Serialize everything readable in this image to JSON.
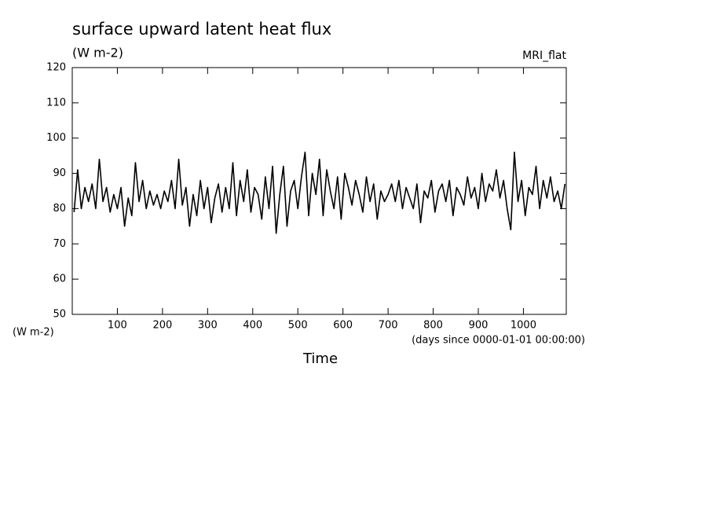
{
  "chart_data": {
    "type": "line",
    "title": "surface upward latent heat flux",
    "subtitle": "(W m-2)",
    "dataset_label": "MRI_flat",
    "y_axis_unit": "(W m-2)",
    "x_axis_unit": "(days since 0000-01-01 00:00:00)",
    "x_label": "Time",
    "xlim": [
      0,
      1095
    ],
    "xticks": [
      100,
      200,
      300,
      400,
      500,
      600,
      700,
      800,
      900,
      1000
    ],
    "ylim": [
      50,
      120
    ],
    "yticks": [
      50,
      60,
      70,
      80,
      90,
      100,
      110,
      120
    ],
    "series": [
      {
        "color": "#000000",
        "x": [
          4,
          12,
          20,
          28,
          36,
          44,
          52,
          60,
          68,
          76,
          84,
          92,
          100,
          108,
          116,
          124,
          132,
          140,
          148,
          156,
          164,
          172,
          180,
          188,
          196,
          204,
          212,
          220,
          228,
          236,
          244,
          252,
          260,
          268,
          276,
          284,
          292,
          300,
          308,
          316,
          324,
          332,
          340,
          348,
          356,
          364,
          372,
          380,
          388,
          396,
          404,
          412,
          420,
          428,
          436,
          444,
          452,
          460,
          468,
          476,
          484,
          492,
          500,
          508,
          516,
          524,
          532,
          540,
          548,
          556,
          564,
          572,
          580,
          588,
          596,
          604,
          612,
          620,
          628,
          636,
          644,
          652,
          660,
          668,
          676,
          684,
          692,
          700,
          708,
          716,
          724,
          732,
          740,
          748,
          756,
          764,
          772,
          780,
          788,
          796,
          804,
          812,
          820,
          828,
          836,
          844,
          852,
          860,
          868,
          876,
          884,
          892,
          900,
          908,
          916,
          924,
          932,
          940,
          948,
          956,
          964,
          972,
          980,
          988,
          996,
          1004,
          1012,
          1020,
          1028,
          1036,
          1044,
          1052,
          1060,
          1068,
          1076,
          1084,
          1092
        ],
        "values": [
          79,
          91,
          80,
          86,
          82,
          87,
          80,
          94,
          82,
          86,
          79,
          84,
          80,
          86,
          75,
          83,
          78,
          93,
          82,
          88,
          80,
          85,
          81,
          84,
          80,
          85,
          82,
          88,
          80,
          94,
          81,
          86,
          75,
          84,
          78,
          88,
          80,
          86,
          76,
          83,
          87,
          79,
          86,
          80,
          93,
          78,
          88,
          82,
          91,
          79,
          86,
          84,
          77,
          89,
          80,
          92,
          73,
          84,
          92,
          75,
          85,
          88,
          80,
          89,
          96,
          78,
          90,
          84,
          94,
          78,
          91,
          85,
          80,
          89,
          77,
          90,
          86,
          81,
          88,
          84,
          79,
          89,
          82,
          87,
          77,
          85,
          82,
          84,
          87,
          82,
          88,
          80,
          86,
          83,
          80,
          87,
          76,
          85,
          83,
          88,
          79,
          85,
          87,
          82,
          88,
          78,
          86,
          84,
          81,
          89,
          83,
          86,
          80,
          90,
          82,
          87,
          85,
          91,
          83,
          88,
          80,
          74,
          96,
          82,
          88,
          78,
          86,
          84,
          92,
          80,
          88,
          83,
          89,
          82,
          85,
          80,
          87
        ]
      }
    ]
  }
}
